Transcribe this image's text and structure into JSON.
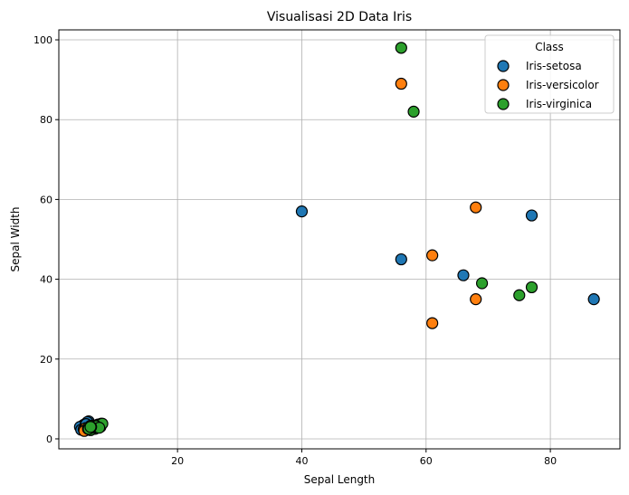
{
  "chart_data": {
    "type": "scatter",
    "title": "Visualisasi 2D Data Iris",
    "xlabel": "Sepal Length",
    "ylabel": "Sepal Width",
    "xlim": [
      0.9,
      91.2
    ],
    "ylim": [
      -2.5,
      102.5
    ],
    "xticks": [
      20,
      40,
      60,
      80
    ],
    "yticks": [
      0,
      20,
      40,
      60,
      80,
      100
    ],
    "grid": true,
    "legend": {
      "title": "Class",
      "placement": "top-right"
    },
    "series": [
      {
        "name": "Iris-setosa",
        "color": "#1f77b4",
        "points": [
          [
            40,
            57
          ],
          [
            56,
            45
          ],
          [
            66,
            41
          ],
          [
            77,
            56
          ],
          [
            87,
            35
          ],
          [
            5.1,
            3.5
          ],
          [
            4.9,
            3.0
          ],
          [
            4.7,
            3.2
          ],
          [
            4.6,
            3.1
          ],
          [
            5.0,
            3.6
          ],
          [
            5.4,
            3.9
          ],
          [
            4.8,
            3.4
          ],
          [
            4.3,
            3.0
          ],
          [
            5.8,
            4.0
          ],
          [
            5.7,
            4.4
          ],
          [
            5.2,
            3.5
          ],
          [
            5.5,
            4.2
          ],
          [
            4.5,
            2.3
          ],
          [
            5.3,
            3.7
          ],
          [
            6.0,
            3.3
          ]
        ]
      },
      {
        "name": "Iris-versicolor",
        "color": "#ff7f0e",
        "points": [
          [
            56,
            89
          ],
          [
            68,
            58
          ],
          [
            61,
            46
          ],
          [
            68,
            35
          ],
          [
            61,
            29
          ],
          [
            7.0,
            3.2
          ],
          [
            6.4,
            3.2
          ],
          [
            6.9,
            3.1
          ],
          [
            5.5,
            2.3
          ],
          [
            6.5,
            2.8
          ],
          [
            5.7,
            2.8
          ],
          [
            6.3,
            3.3
          ],
          [
            4.9,
            2.4
          ],
          [
            6.6,
            2.9
          ],
          [
            5.2,
            2.7
          ],
          [
            5.0,
            2.0
          ],
          [
            5.9,
            3.0
          ],
          [
            6.1,
            2.9
          ],
          [
            6.7,
            3.1
          ],
          [
            5.6,
            2.5
          ]
        ]
      },
      {
        "name": "Iris-virginica",
        "color": "#2ca02c",
        "points": [
          [
            56,
            98
          ],
          [
            58,
            82
          ],
          [
            69,
            39
          ],
          [
            75,
            36
          ],
          [
            77,
            38
          ],
          [
            6.3,
            3.3
          ],
          [
            5.8,
            2.7
          ],
          [
            7.1,
            3.0
          ],
          [
            6.5,
            3.0
          ],
          [
            7.6,
            3.0
          ],
          [
            7.3,
            2.9
          ],
          [
            6.7,
            2.5
          ],
          [
            7.2,
            3.6
          ],
          [
            6.4,
            2.7
          ],
          [
            6.8,
            3.0
          ],
          [
            7.7,
            3.8
          ],
          [
            7.9,
            3.8
          ],
          [
            6.0,
            2.2
          ],
          [
            6.9,
            3.2
          ],
          [
            5.6,
            2.8
          ],
          [
            6.2,
            2.8
          ],
          [
            7.4,
            2.8
          ],
          [
            6.1,
            3.0
          ],
          [
            5.7,
            2.5
          ],
          [
            6.0,
            3.0
          ]
        ]
      }
    ]
  }
}
